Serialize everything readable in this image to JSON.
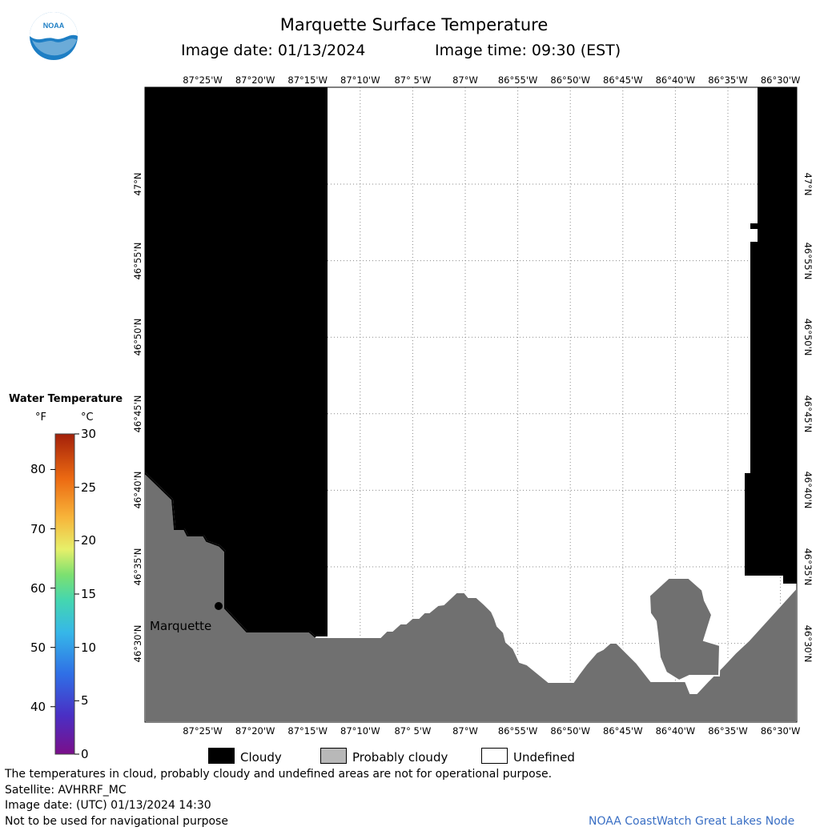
{
  "header": {
    "title": "Marquette Surface Temperature",
    "image_date_label": "Image date: 01/13/2024",
    "image_time_label": "Image time: 09:30 (EST)"
  },
  "logo": {
    "text": "NOAA",
    "color": "#1d7ec4"
  },
  "map": {
    "lon_ticks": [
      "87°25'W",
      "87°20'W",
      "87°15'W",
      "87°10'W",
      "87° 5'W",
      "87°W",
      "86°55'W",
      "86°50'W",
      "86°45'W",
      "86°40'W",
      "86°35'W",
      "86°30'W"
    ],
    "lat_ticks": [
      "47°N",
      "46°55'N",
      "46°50'N",
      "46°45'N",
      "46°40'N",
      "46°35'N",
      "46°30'N"
    ],
    "city_label": "Marquette",
    "colors": {
      "cloudy": "#000000",
      "probably_cloudy": "#707070",
      "undefined": "#ffffff",
      "grid": "#888888"
    }
  },
  "colorbar": {
    "title": "Water Temperature",
    "unit_f": "°F",
    "unit_c": "°C",
    "f_ticks": [
      "80",
      "70",
      "60",
      "50",
      "40"
    ],
    "c_ticks": [
      "30",
      "25",
      "20",
      "15",
      "10",
      "5",
      "0"
    ]
  },
  "legend": {
    "cloudy": "Cloudy",
    "probably_cloudy": "Probably cloudy",
    "undefined": "Undefined"
  },
  "footer": {
    "note": "The temperatures in cloud, probably cloudy and undefined areas are not for operational purpose.",
    "satellite": "Satellite: AVHRRF_MC",
    "utc_date": "Image date: (UTC) 01/13/2024  14:30",
    "nav_warning": "Not to be used for navigational purpose",
    "credit": "NOAA CoastWatch Great Lakes Node",
    "credit_color": "#3a6fc4"
  }
}
